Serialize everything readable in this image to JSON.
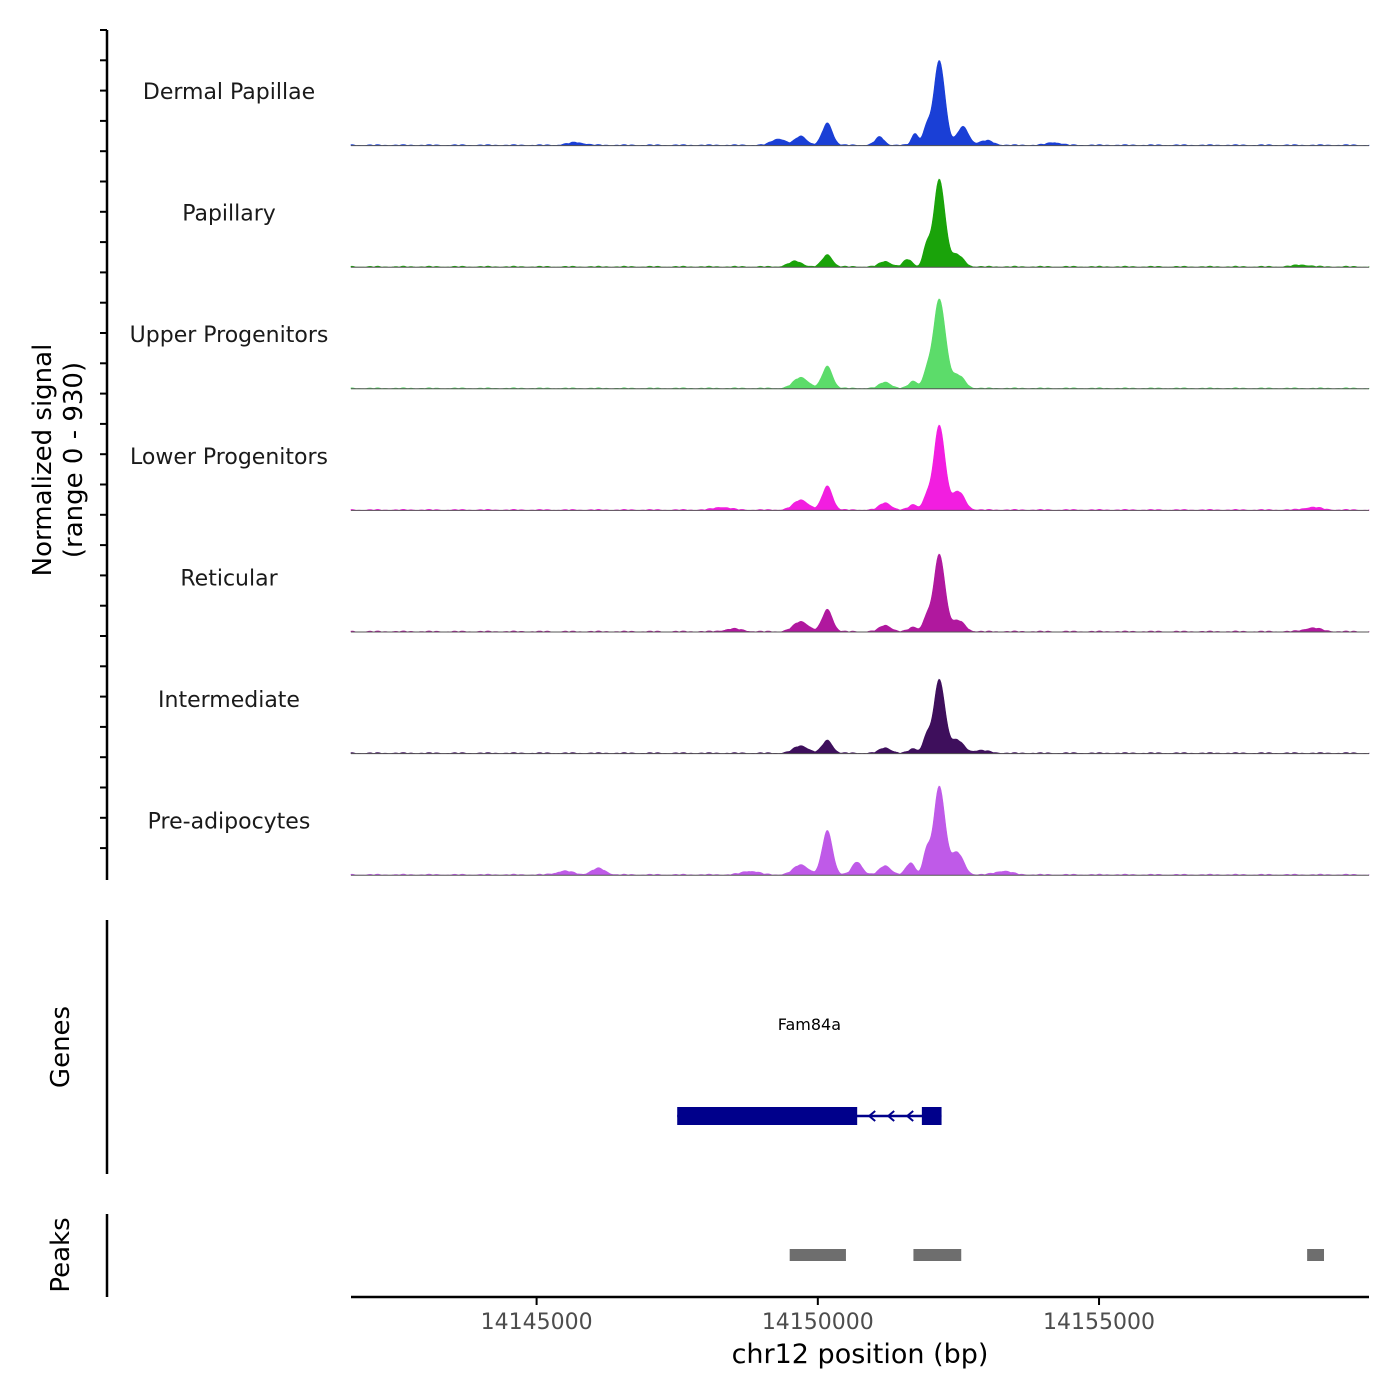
{
  "chart_data": {
    "type": "area",
    "title": "",
    "ylabel_line1": "Normalized signal",
    "ylabel_line2": "(range 0 - 930)",
    "y_range": [
      0,
      930
    ],
    "xlabel": "chr12 position (bp)",
    "chromosome": "chr12",
    "xlim": [
      14141700,
      14159800
    ],
    "x_ticks": [
      14145000,
      14150000,
      14155000
    ],
    "x_tick_labels": [
      "14145000",
      "14150000",
      "14155000"
    ],
    "tracks": [
      {
        "name": "Dermal Papillae",
        "color": "#1a3fd6",
        "peaks": [
          [
            14152160,
            0.92,
            100
          ],
          [
            14150170,
            0.24,
            90
          ],
          [
            14152580,
            0.2,
            100
          ],
          [
            14149300,
            0.07,
            120
          ],
          [
            14149700,
            0.1,
            100
          ],
          [
            14151100,
            0.09,
            80
          ],
          [
            14151730,
            0.13,
            60
          ],
          [
            14151930,
            0.18,
            60
          ],
          [
            14153000,
            0.05,
            120
          ],
          [
            14145700,
            0.03,
            150
          ],
          [
            14154200,
            0.03,
            120
          ]
        ]
      },
      {
        "name": "Papillary",
        "color": "#1aa30a",
        "peaks": [
          [
            14152160,
            0.95,
            100
          ],
          [
            14150170,
            0.13,
            90
          ],
          [
            14152480,
            0.13,
            110
          ],
          [
            14149600,
            0.06,
            120
          ],
          [
            14151200,
            0.06,
            100
          ],
          [
            14151930,
            0.21,
            60
          ],
          [
            14151600,
            0.08,
            80
          ],
          [
            14158600,
            0.02,
            150
          ]
        ]
      },
      {
        "name": "Upper Progenitors",
        "color": "#5cdc6a",
        "peaks": [
          [
            14152160,
            0.97,
            110
          ],
          [
            14150170,
            0.24,
            90
          ],
          [
            14152500,
            0.14,
            110
          ],
          [
            14149700,
            0.12,
            130
          ],
          [
            14151200,
            0.07,
            100
          ],
          [
            14151930,
            0.14,
            60
          ],
          [
            14151700,
            0.08,
            80
          ]
        ]
      },
      {
        "name": "Lower Progenitors",
        "color": "#f21ee0",
        "peaks": [
          [
            14152160,
            0.92,
            100
          ],
          [
            14150170,
            0.26,
            90
          ],
          [
            14152500,
            0.2,
            110
          ],
          [
            14149700,
            0.11,
            130
          ],
          [
            14151200,
            0.08,
            100
          ],
          [
            14151930,
            0.13,
            60
          ],
          [
            14151700,
            0.06,
            80
          ],
          [
            14148300,
            0.03,
            150
          ],
          [
            14158800,
            0.03,
            150
          ]
        ]
      },
      {
        "name": "Reticular",
        "color": "#b0189e",
        "peaks": [
          [
            14152160,
            0.84,
            100
          ],
          [
            14150170,
            0.24,
            90
          ],
          [
            14152500,
            0.12,
            110
          ],
          [
            14149700,
            0.11,
            130
          ],
          [
            14151200,
            0.07,
            100
          ],
          [
            14151930,
            0.14,
            60
          ],
          [
            14151700,
            0.05,
            80
          ],
          [
            14148500,
            0.03,
            150
          ],
          [
            14158800,
            0.04,
            150
          ]
        ]
      },
      {
        "name": "Intermediate",
        "color": "#3e0f5c",
        "peaks": [
          [
            14152160,
            0.8,
            100
          ],
          [
            14150170,
            0.14,
            90
          ],
          [
            14152480,
            0.14,
            110
          ],
          [
            14149700,
            0.08,
            130
          ],
          [
            14151200,
            0.06,
            100
          ],
          [
            14151930,
            0.17,
            60
          ],
          [
            14151700,
            0.05,
            80
          ],
          [
            14152900,
            0.03,
            150
          ]
        ]
      },
      {
        "name": "Pre-adipocytes",
        "color": "#bf5ae8",
        "peaks": [
          [
            14152160,
            0.96,
            100
          ],
          [
            14150170,
            0.48,
            90
          ],
          [
            14152480,
            0.24,
            110
          ],
          [
            14149700,
            0.11,
            130
          ],
          [
            14151200,
            0.1,
            100
          ],
          [
            14151930,
            0.24,
            60
          ],
          [
            14151650,
            0.13,
            80
          ],
          [
            14150700,
            0.14,
            90
          ],
          [
            14146100,
            0.07,
            120
          ],
          [
            14145500,
            0.04,
            150
          ],
          [
            14148800,
            0.04,
            150
          ],
          [
            14153300,
            0.04,
            150
          ]
        ]
      }
    ],
    "genes": {
      "label": "Genes",
      "items": [
        {
          "name": "Fam84a",
          "strand": "-",
          "start": 14147500,
          "end": 14152200,
          "exons": [
            [
              14147500,
              14150700
            ],
            [
              14151850,
              14152200
            ]
          ],
          "color": "#00008b"
        }
      ]
    },
    "peaks_track": {
      "label": "Peaks",
      "color": "#6e6e6e",
      "regions": [
        [
          14149500,
          14150500
        ],
        [
          14151700,
          14152550
        ],
        [
          14158700,
          14159000
        ]
      ]
    }
  }
}
